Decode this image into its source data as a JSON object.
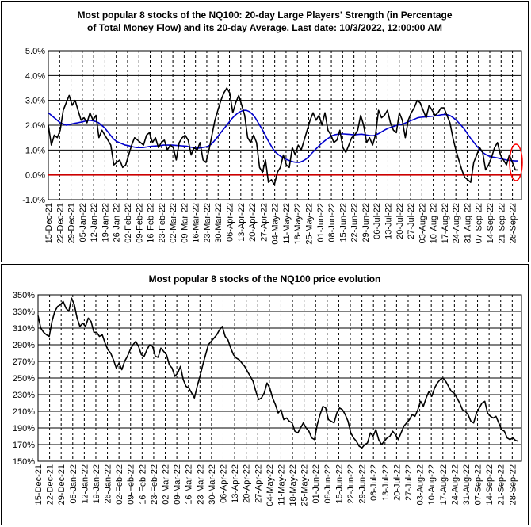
{
  "chart_data": [
    {
      "type": "line",
      "title_line1": "Most popular 8 stocks of the NQ100: 20-day Large Players' Strength (in Percentage",
      "title_line2": "of Total Money Flow) and its 20-day Average. Last date: 10/3/2022, 12:00:00 AM",
      "ylim": [
        -1.0,
        5.0
      ],
      "yticks": [
        "5.0%",
        "4.0%",
        "3.0%",
        "2.0%",
        "1.0%",
        "0.0%",
        "-1.0%"
      ],
      "ytick_values": [
        5,
        4,
        3,
        2,
        1,
        0,
        -1
      ],
      "xticks": [
        "15-Dec-21",
        "22-Dec-21",
        "29-Dec-21",
        "05-Jan-22",
        "12-Jan-22",
        "19-Jan-22",
        "26-Jan-22",
        "02-Feb-22",
        "09-Feb-22",
        "16-Feb-22",
        "23-Feb-22",
        "02-Mar-22",
        "09-Mar-22",
        "16-Mar-22",
        "23-Mar-22",
        "30-Mar-22",
        "06-Apr-22",
        "13-Apr-22",
        "20-Apr-22",
        "27-Apr-22",
        "04-May-22",
        "11-May-22",
        "18-May-22",
        "25-May-22",
        "01-Jun-22",
        "08-Jun-22",
        "15-Jun-22",
        "22-Jun-22",
        "29-Jun-22",
        "06-Jul-22",
        "13-Jul-22",
        "20-Jul-22",
        "27-Jul-22",
        "03-Aug-22",
        "10-Aug-22",
        "17-Aug-22",
        "24-Aug-22",
        "31-Aug-22",
        "07-Sep-22",
        "14-Sep-22",
        "21-Sep-22",
        "28-Sep-22"
      ],
      "reference_line": 0.0,
      "colors": {
        "strength": "#000000",
        "average": "#0000cc",
        "zero_line": "#cc0000",
        "highlight": "#ff0000"
      },
      "series": [
        {
          "key": "strength",
          "values": [
            2.0,
            1.2,
            1.6,
            1.5,
            1.8,
            2.6,
            2.9,
            3.2,
            2.8,
            3.0,
            2.6,
            2.2,
            2.3,
            2.1,
            2.5,
            2.2,
            2.4,
            1.5,
            1.8,
            1.6,
            1.4,
            1.2,
            0.4,
            0.5,
            0.6,
            0.3,
            0.4,
            0.8,
            1.2,
            1.5,
            1.4,
            1.3,
            1.2,
            1.6,
            1.7,
            1.3,
            1.5,
            1.1,
            1.3,
            1.4,
            1.0,
            1.2,
            1.1,
            0.6,
            1.3,
            1.5,
            1.6,
            1.4,
            0.8,
            1.1,
            1.0,
            1.3,
            0.6,
            0.5,
            1.0,
            1.6,
            2.2,
            2.6,
            3.0,
            3.3,
            3.5,
            3.3,
            2.5,
            2.9,
            3.2,
            2.8,
            2.4,
            1.5,
            1.3,
            1.6,
            1.3,
            0.3,
            0.1,
            0.6,
            -0.3,
            -0.2,
            -0.4,
            0.1,
            0.3,
            0.8,
            0.4,
            0.3,
            1.1,
            0.8,
            1.2,
            1.0,
            1.4,
            1.8,
            2.2,
            2.5,
            2.2,
            2.4,
            2.0,
            2.5,
            1.8,
            1.6,
            1.3,
            1.4,
            1.8,
            1.1,
            0.9,
            1.2,
            1.5,
            1.6,
            1.8,
            2.4,
            2.0,
            1.3,
            1.5,
            1.2,
            1.6,
            2.6,
            2.3,
            2.4,
            2.6,
            2.1,
            1.8,
            1.7,
            2.5,
            2.2,
            1.5,
            2.2,
            2.5,
            2.7,
            3.0,
            2.9,
            2.6,
            2.3,
            2.8,
            2.6,
            2.4,
            2.5,
            2.7,
            2.7,
            2.4,
            2.1,
            1.5,
            1.0,
            0.6,
            0.2,
            -0.1,
            -0.2,
            -0.3,
            0.5,
            0.8,
            1.1,
            0.9,
            0.2,
            0.4,
            0.7,
            1.1,
            1.3,
            0.8,
            0.6,
            0.4,
            0.8,
            0.5,
            0.2,
            0.2
          ]
        },
        {
          "key": "average",
          "values": [
            2.5,
            2.4,
            2.3,
            2.2,
            2.1,
            2.05,
            2.0,
            2.02,
            2.05,
            2.08,
            2.1,
            2.12,
            2.15,
            2.18,
            2.2,
            2.18,
            2.15,
            2.1,
            2.0,
            1.9,
            1.75,
            1.6,
            1.45,
            1.35,
            1.3,
            1.25,
            1.2,
            1.18,
            1.15,
            1.12,
            1.1,
            1.1,
            1.1,
            1.12,
            1.14,
            1.15,
            1.16,
            1.17,
            1.18,
            1.2,
            1.2,
            1.2,
            1.2,
            1.19,
            1.18,
            1.17,
            1.16,
            1.15,
            1.12,
            1.1,
            1.08,
            1.08,
            1.1,
            1.12,
            1.15,
            1.22,
            1.35,
            1.5,
            1.65,
            1.8,
            1.95,
            2.1,
            2.25,
            2.38,
            2.48,
            2.55,
            2.6,
            2.6,
            2.55,
            2.45,
            2.3,
            2.1,
            1.9,
            1.7,
            1.45,
            1.25,
            1.05,
            0.9,
            0.8,
            0.72,
            0.65,
            0.6,
            0.55,
            0.52,
            0.5,
            0.5,
            0.55,
            0.62,
            0.72,
            0.85,
            0.98,
            1.1,
            1.22,
            1.32,
            1.42,
            1.5,
            1.58,
            1.62,
            1.64,
            1.65,
            1.65,
            1.64,
            1.63,
            1.62,
            1.62,
            1.63,
            1.64,
            1.62,
            1.6,
            1.58,
            1.58,
            1.62,
            1.68,
            1.75,
            1.82,
            1.88,
            1.92,
            1.96,
            2.0,
            2.02,
            2.05,
            2.1,
            2.15,
            2.2,
            2.25,
            2.3,
            2.32,
            2.33,
            2.34,
            2.35,
            2.36,
            2.38,
            2.4,
            2.42,
            2.43,
            2.42,
            2.38,
            2.3,
            2.2,
            2.08,
            1.95,
            1.8,
            1.62,
            1.45,
            1.3,
            1.15,
            1.02,
            0.9,
            0.82,
            0.76,
            0.72,
            0.7,
            0.68,
            0.65,
            0.62,
            0.6,
            0.58,
            0.57,
            0.56,
            0.56
          ]
        }
      ]
    },
    {
      "type": "line",
      "title": "Most popular 8 stocks of the NQ100 price evolution",
      "ylim": [
        150,
        350
      ],
      "yticks": [
        "350%",
        "330%",
        "310%",
        "290%",
        "270%",
        "250%",
        "230%",
        "210%",
        "190%",
        "170%",
        "150%"
      ],
      "ytick_values": [
        350,
        330,
        310,
        290,
        270,
        250,
        230,
        210,
        190,
        170,
        150
      ],
      "xticks": [
        "15-Dec-21",
        "22-Dec-21",
        "29-Dec-21",
        "05-Jan-22",
        "12-Jan-22",
        "19-Jan-22",
        "26-Jan-22",
        "02-Feb-22",
        "09-Feb-22",
        "16-Feb-22",
        "23-Feb-22",
        "02-Mar-22",
        "09-Mar-22",
        "16-Mar-22",
        "23-Mar-22",
        "30-Mar-22",
        "06-Apr-22",
        "13-Apr-22",
        "20-Apr-22",
        "27-Apr-22",
        "04-May-22",
        "11-May-22",
        "18-May-22",
        "25-May-22",
        "01-Jun-22",
        "08-Jun-22",
        "15-Jun-22",
        "22-Jun-22",
        "29-Jun-22",
        "06-Jul-22",
        "13-Jul-22",
        "20-Jul-22",
        "27-Jul-22",
        "03-Aug-22",
        "10-Aug-22",
        "17-Aug-22",
        "24-Aug-22",
        "31-Aug-22",
        "07-Sep-22",
        "14-Sep-22",
        "21-Sep-22",
        "28-Sep-22"
      ],
      "colors": {
        "price": "#000000"
      },
      "series": [
        {
          "key": "price",
          "values": [
            325,
            310,
            305,
            302,
            300,
            318,
            330,
            336,
            338,
            342,
            334,
            330,
            346,
            338,
            322,
            312,
            316,
            312,
            322,
            318,
            305,
            305,
            300,
            302,
            292,
            284,
            280,
            272,
            262,
            268,
            260,
            270,
            276,
            284,
            290,
            294,
            288,
            278,
            276,
            284,
            290,
            288,
            276,
            275,
            286,
            282,
            278,
            266,
            262,
            252,
            256,
            264,
            248,
            240,
            238,
            232,
            226,
            240,
            252,
            266,
            278,
            290,
            294,
            298,
            302,
            308,
            312,
            300,
            296,
            286,
            278,
            274,
            272,
            268,
            264,
            258,
            252,
            246,
            234,
            224,
            226,
            232,
            244,
            238,
            226,
            218,
            208,
            212,
            200,
            202,
            198,
            196,
            186,
            184,
            190,
            196,
            190,
            186,
            178,
            176,
            194,
            206,
            216,
            214,
            200,
            198,
            196,
            208,
            214,
            212,
            206,
            198,
            184,
            178,
            174,
            168,
            166,
            170,
            172,
            184,
            180,
            188,
            176,
            170,
            174,
            178,
            180,
            186,
            182,
            176,
            184,
            192,
            196,
            200,
            206,
            204,
            212,
            222,
            216,
            226,
            234,
            228,
            238,
            244,
            248,
            250,
            246,
            240,
            234,
            232,
            226,
            220,
            212,
            210,
            206,
            198,
            196,
            208,
            214,
            220,
            222,
            208,
            204,
            202,
            204,
            196,
            188,
            186,
            178,
            176,
            178,
            175,
            174
          ]
        }
      ]
    }
  ]
}
